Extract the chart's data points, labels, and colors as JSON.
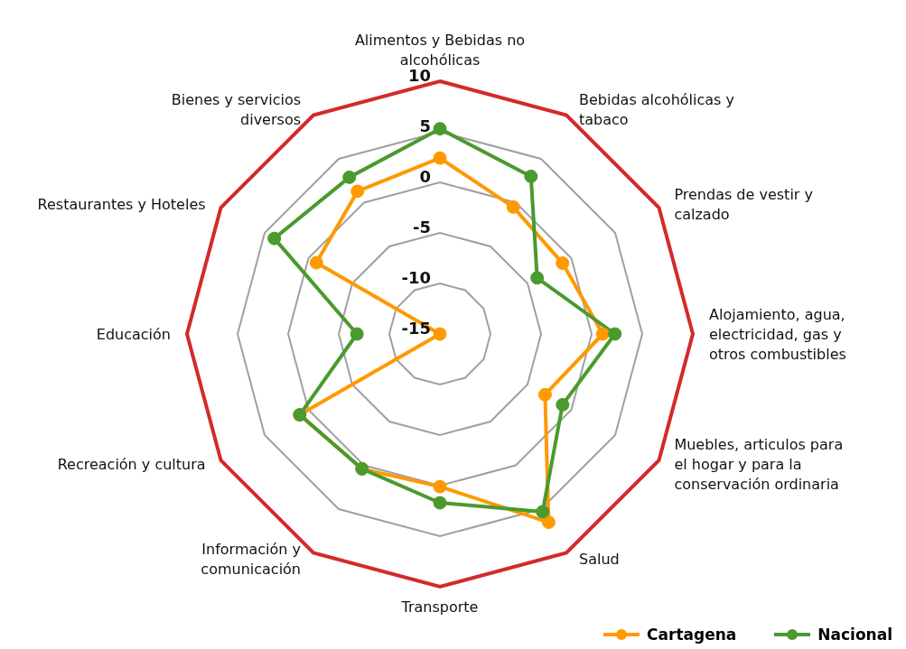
{
  "chart_data": {
    "type": "radar",
    "categories": [
      "Alimentos y Bebidas no alcohólicas",
      "Bebidas alcohólicas y tabaco",
      "Prendas de vestir y calzado",
      "Alojamiento, agua, electricidad, gas y otros combustibles",
      "Muebles, articulos para el hogar y para la conservación ordinaria",
      "Salud",
      "Transporte",
      "Información y comunicación",
      "Recreación y cultura",
      "Educación",
      "Restaurantes y Hoteles",
      "Bienes y servicios diversos"
    ],
    "series": [
      {
        "name": "Cartagena",
        "color": "#ff9900",
        "values": [
          2.4,
          -0.5,
          -1.0,
          1.1,
          -3.0,
          6.5,
          0.1,
          0.4,
          1.0,
          -15,
          -0.9,
          1.3
        ]
      },
      {
        "name": "Nacional",
        "color": "#4a9a2e",
        "values": [
          5.3,
          3.0,
          -3.9,
          2.3,
          -1.0,
          5.3,
          1.7,
          0.4,
          1.0,
          -6.8,
          3.9,
          2.9
        ]
      }
    ],
    "ylim": [
      -15,
      10
    ],
    "yticks": [
      -15,
      -10,
      -5,
      0,
      5,
      10
    ],
    "grid": true,
    "legend": "bottom right",
    "marker": "circle"
  }
}
